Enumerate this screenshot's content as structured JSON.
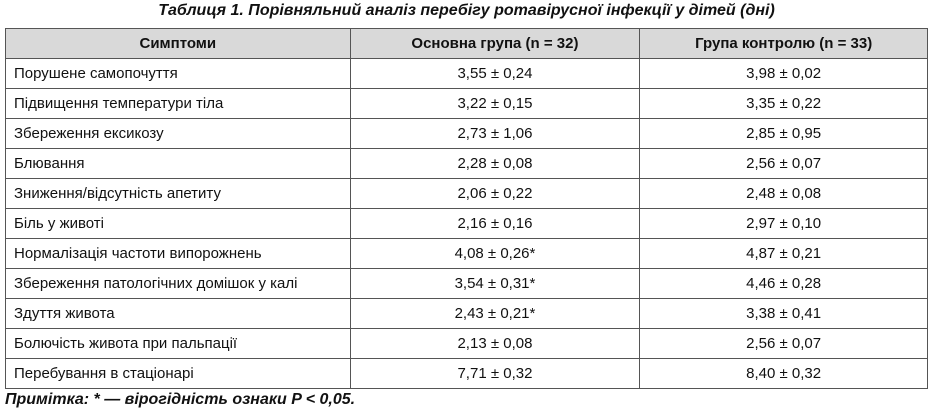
{
  "title": "Таблиця 1. Порівняльний аналіз перебігу ротавірусної інфекції у дітей (дні)",
  "table": {
    "header": [
      "Симптоми",
      "Основна група (n = 32)",
      "Група контролю (n = 33)"
    ],
    "rows": [
      [
        "Порушене самопочуття",
        "3,55 ± 0,24",
        "3,98 ± 0,02"
      ],
      [
        "Підвищення температури тіла",
        "3,22 ± 0,15",
        "3,35 ± 0,22"
      ],
      [
        "Збереження ексикозу",
        "2,73 ± 1,06",
        "2,85 ± 0,95"
      ],
      [
        "Блювання",
        "2,28 ± 0,08",
        "2,56 ± 0,07"
      ],
      [
        "Зниження/відсутність апетиту",
        "2,06 ± 0,22",
        "2,48 ± 0,08"
      ],
      [
        "Біль у животі",
        "2,16 ± 0,16",
        "2,97 ± 0,10"
      ],
      [
        "Нормалізація частоти випорожнень",
        "4,08 ± 0,26*",
        "4,87 ± 0,21"
      ],
      [
        "Збереження патологічних домішок у калі",
        "3,54 ± 0,31*",
        "4,46 ± 0,28"
      ],
      [
        "Здуття живота",
        "2,43 ± 0,21*",
        "3,38 ± 0,41"
      ],
      [
        "Болючість живота при пальпації",
        "2,13 ± 0,08",
        "2,56 ± 0,07"
      ],
      [
        "Перебування в стаціонарі",
        "7,71 ± 0,32",
        "8,40 ± 0,32"
      ]
    ]
  },
  "note": "Примітка: * — вірогідність ознаки P < 0,05."
}
